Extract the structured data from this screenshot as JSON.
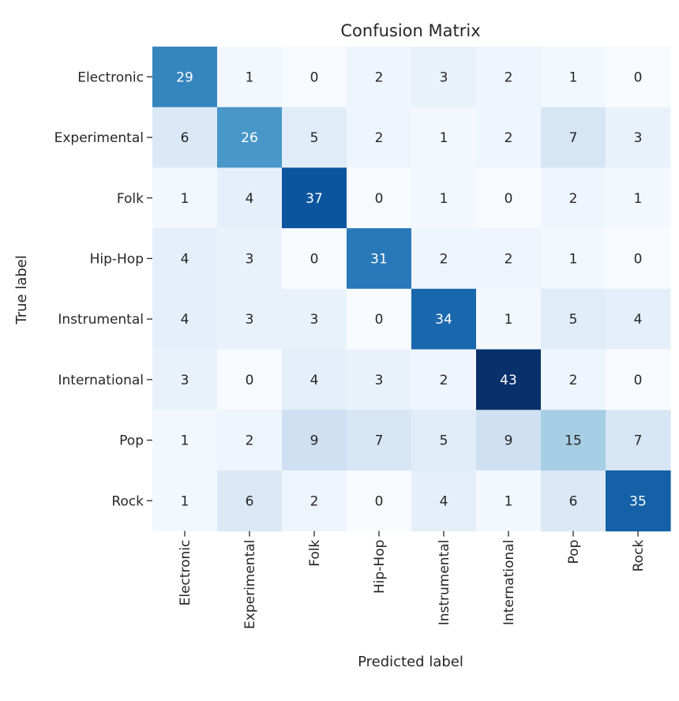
{
  "chart_data": {
    "type": "heatmap",
    "title": "Confusion Matrix",
    "xlabel": "Predicted label",
    "ylabel": "True label",
    "row_labels": [
      "Electronic",
      "Experimental",
      "Folk",
      "Hip-Hop",
      "Instrumental",
      "International",
      "Pop",
      "Rock"
    ],
    "col_labels": [
      "Electronic",
      "Experimental",
      "Folk",
      "Hip-Hop",
      "Instrumental",
      "International",
      "Pop",
      "Rock"
    ],
    "values": [
      [
        29,
        1,
        0,
        2,
        3,
        2,
        1,
        0
      ],
      [
        6,
        26,
        5,
        2,
        1,
        2,
        7,
        3
      ],
      [
        1,
        4,
        37,
        0,
        1,
        0,
        2,
        1
      ],
      [
        4,
        3,
        0,
        31,
        2,
        2,
        1,
        0
      ],
      [
        4,
        3,
        3,
        0,
        34,
        1,
        5,
        4
      ],
      [
        3,
        0,
        4,
        3,
        2,
        43,
        2,
        0
      ],
      [
        1,
        2,
        9,
        7,
        5,
        9,
        15,
        7
      ],
      [
        1,
        6,
        2,
        0,
        4,
        1,
        6,
        35
      ]
    ],
    "colormap": "Blues",
    "vmin": 0,
    "vmax": 43,
    "colorbar": false,
    "grid": false
  }
}
